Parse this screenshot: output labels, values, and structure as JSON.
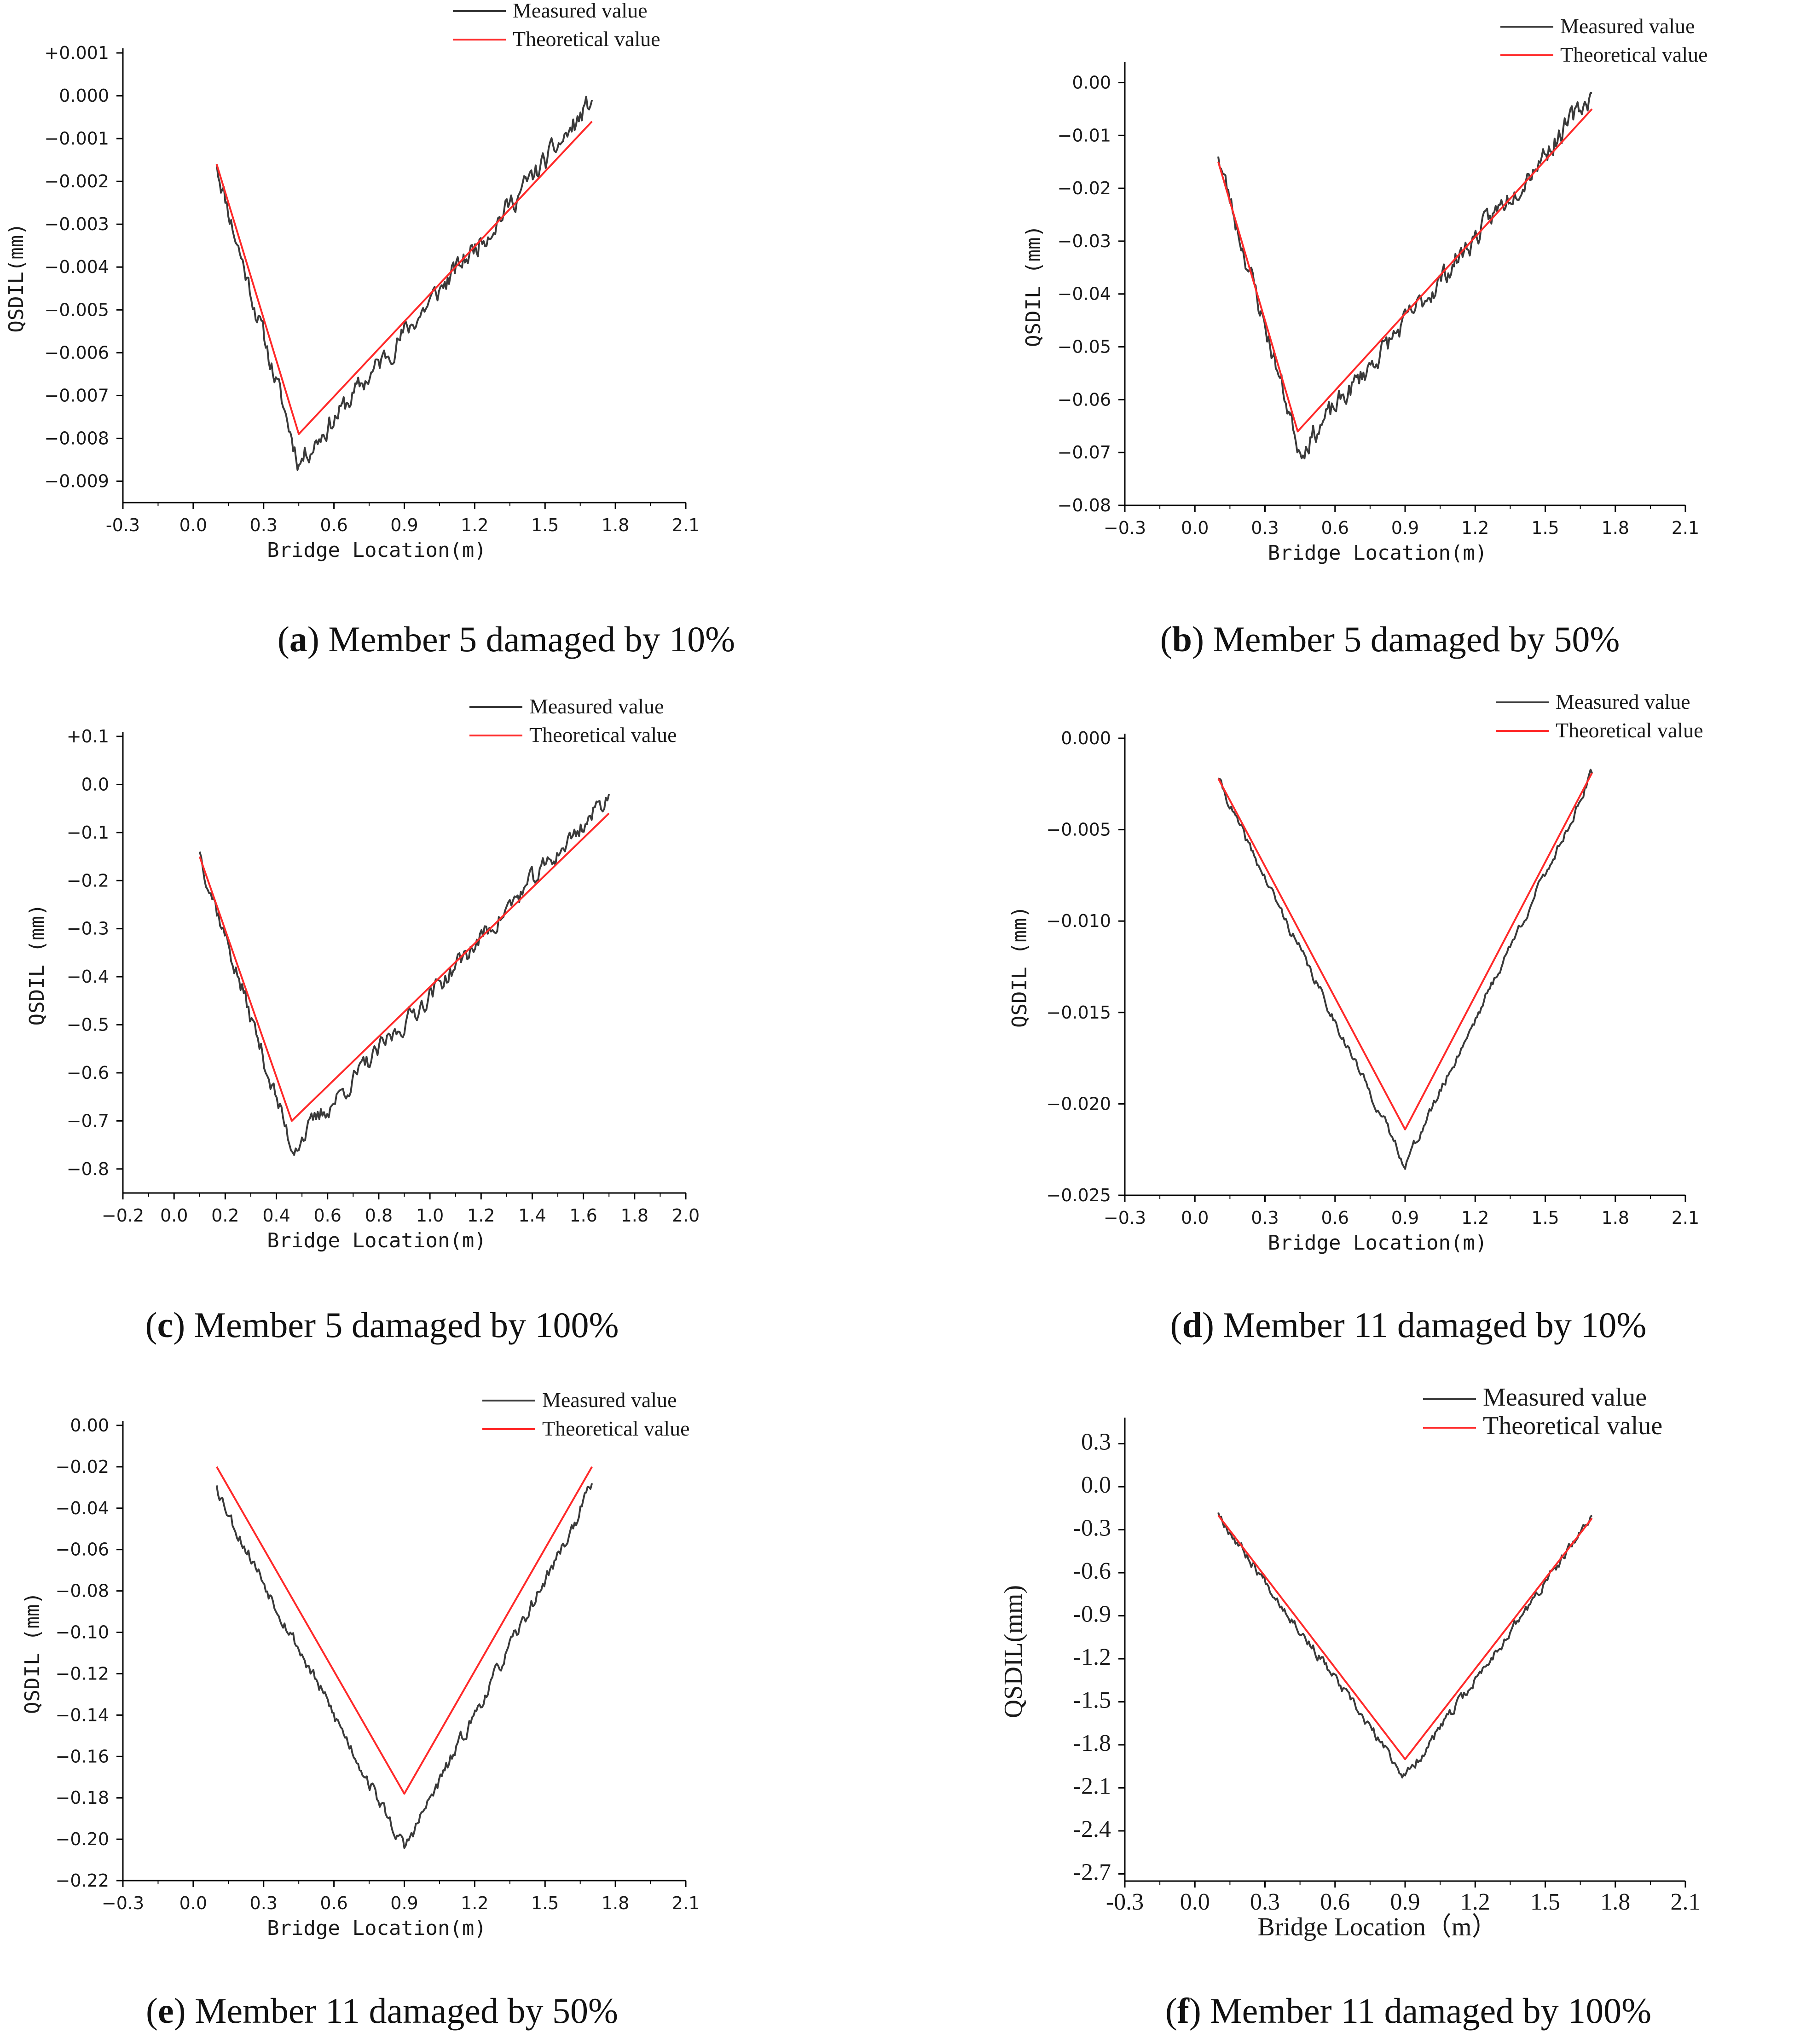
{
  "colors": {
    "measured": "#3a3a3a",
    "theoretical": "#ff2a2a",
    "axis": "#000000"
  },
  "chart_data": [
    {
      "type": "line",
      "caption": {
        "letter": "a",
        "text": "Member 5 damaged by 10%"
      },
      "xlabel": "Bridge Location(m)",
      "ylabel": "QSDIL(mm)",
      "xlim": [
        -0.3,
        2.1
      ],
      "ylim": [
        -0.0095,
        0.001
      ],
      "xticks": [
        -0.3,
        0.0,
        0.3,
        0.6,
        0.9,
        1.2,
        1.5,
        1.8,
        2.1
      ],
      "xtick_labels": [
        "-0.3",
        "0.0",
        "0.3",
        "0.6",
        "0.9",
        "1.2",
        "1.5",
        "1.8",
        "2.1"
      ],
      "yticks": [
        0.001,
        0.0,
        -0.001,
        -0.002,
        -0.003,
        -0.004,
        -0.005,
        -0.006,
        -0.007,
        -0.008,
        -0.009
      ],
      "ytick_labels": [
        "+0.001",
        "0.000",
        "−0.001",
        "−0.002",
        "−0.003",
        "−0.004",
        "−0.005",
        "−0.006",
        "−0.007",
        "−0.008",
        "−0.009"
      ],
      "legend": [
        "Measured value",
        "Theoretical value"
      ],
      "series": [
        {
          "name": "Measured value",
          "x": [
            0.1,
            0.45,
            1.7
          ],
          "y": [
            -0.0016,
            -0.0084,
            -0.0001
          ],
          "noise": 0.00022,
          "bias": -0.0003,
          "seed": 11
        },
        {
          "name": "Theoretical value",
          "x": [
            0.1,
            0.45,
            1.7
          ],
          "y": [
            -0.0016,
            -0.0079,
            -0.0006
          ]
        }
      ]
    },
    {
      "type": "line",
      "caption": {
        "letter": "b",
        "text": "Member 5 damaged by 50%"
      },
      "xlabel": "Bridge Location(m)",
      "ylabel": "QSDIL (mm)",
      "xlim": [
        -0.3,
        2.1
      ],
      "ylim": [
        -0.08,
        0.003
      ],
      "xticks": [
        -0.3,
        0.0,
        0.3,
        0.6,
        0.9,
        1.2,
        1.5,
        1.8,
        2.1
      ],
      "xtick_labels": [
        "−0.3",
        "0.0",
        "0.3",
        "0.6",
        "0.9",
        "1.2",
        "1.5",
        "1.8",
        "2.1"
      ],
      "yticks": [
        0.0,
        -0.01,
        -0.02,
        -0.03,
        -0.04,
        -0.05,
        -0.06,
        -0.07,
        -0.08
      ],
      "ytick_labels": [
        "0.00",
        "−0.01",
        "−0.02",
        "−0.03",
        "−0.04",
        "−0.05",
        "−0.06",
        "−0.07",
        "−0.08"
      ],
      "legend": [
        "Measured value",
        "Theoretical value"
      ],
      "series": [
        {
          "name": "Measured value",
          "x": [
            0.1,
            0.45,
            1.7
          ],
          "y": [
            -0.014,
            -0.069,
            -0.002
          ],
          "noise": 0.0018,
          "bias": -0.0012,
          "seed": 23
        },
        {
          "name": "Theoretical value",
          "x": [
            0.1,
            0.44,
            1.7
          ],
          "y": [
            -0.015,
            -0.066,
            -0.005
          ]
        }
      ]
    },
    {
      "type": "line",
      "caption": {
        "letter": "c",
        "text": "Member 5 damaged by 100%"
      },
      "xlabel": "Bridge Location(m)",
      "ylabel": "QSDIL (mm)",
      "xlim": [
        -0.2,
        2.0
      ],
      "ylim": [
        -0.85,
        0.1
      ],
      "xticks": [
        -0.2,
        0.0,
        0.2,
        0.4,
        0.6,
        0.8,
        1.0,
        1.2,
        1.4,
        1.6,
        1.8,
        2.0
      ],
      "xtick_labels": [
        "−0.2",
        "0.0",
        "0.2",
        "0.4",
        "0.6",
        "0.8",
        "1.0",
        "1.2",
        "1.4",
        "1.6",
        "1.8",
        "2.0"
      ],
      "yticks": [
        0.1,
        0.0,
        -0.1,
        -0.2,
        -0.3,
        -0.4,
        -0.5,
        -0.6,
        -0.7,
        -0.8
      ],
      "ytick_labels": [
        "+0.1",
        "0.0",
        "−0.1",
        "−0.2",
        "−0.3",
        "−0.4",
        "−0.5",
        "−0.6",
        "−0.7",
        "−0.8"
      ],
      "legend": [
        "Measured value",
        "Theoretical value"
      ],
      "series": [
        {
          "name": "Measured value",
          "x": [
            0.1,
            0.46,
            1.7
          ],
          "y": [
            -0.14,
            -0.75,
            -0.02
          ],
          "noise": 0.018,
          "bias": -0.012,
          "seed": 37
        },
        {
          "name": "Theoretical value",
          "x": [
            0.1,
            0.46,
            1.7
          ],
          "y": [
            -0.15,
            -0.7,
            -0.06
          ]
        }
      ]
    },
    {
      "type": "line",
      "caption": {
        "letter": "d",
        "text": "Member 11 damaged by 10%"
      },
      "xlabel": "Bridge Location(m)",
      "ylabel": "QSDIL (mm)",
      "xlim": [
        -0.3,
        2.1
      ],
      "ylim": [
        -0.025,
        0.0
      ],
      "xticks": [
        -0.3,
        0.0,
        0.3,
        0.6,
        0.9,
        1.2,
        1.5,
        1.8,
        2.1
      ],
      "xtick_labels": [
        "−0.3",
        "0.0",
        "0.3",
        "0.6",
        "0.9",
        "1.2",
        "1.5",
        "1.8",
        "2.1"
      ],
      "yticks": [
        0.0,
        -0.005,
        -0.01,
        -0.015,
        -0.02,
        -0.025
      ],
      "ytick_labels": [
        "0.000",
        "−0.005",
        "−0.010",
        "−0.015",
        "−0.020",
        "−0.025"
      ],
      "legend": [
        "Measured value",
        "Theoretical value"
      ],
      "series": [
        {
          "name": "Measured value",
          "x": [
            0.1,
            0.9,
            1.7
          ],
          "y": [
            -0.0022,
            -0.023,
            -0.0019
          ],
          "noise": 0.00022,
          "bias": -0.0006,
          "seed": 41
        },
        {
          "name": "Theoretical value",
          "x": [
            0.1,
            0.9,
            1.7
          ],
          "y": [
            -0.0022,
            -0.0214,
            -0.0019
          ]
        }
      ]
    },
    {
      "type": "line",
      "caption": {
        "letter": "e",
        "text": "Member 11 damaged by 50%"
      },
      "xlabel": "Bridge Location(m)",
      "ylabel": "QSDIL (mm)",
      "xlim": [
        -0.3,
        2.1
      ],
      "ylim": [
        -0.22,
        0.0
      ],
      "xticks": [
        -0.3,
        0.0,
        0.3,
        0.6,
        0.9,
        1.2,
        1.5,
        1.8,
        2.1
      ],
      "xtick_labels": [
        "−0.3",
        "0.0",
        "0.3",
        "0.6",
        "0.9",
        "1.2",
        "1.5",
        "1.8",
        "2.1"
      ],
      "yticks": [
        0.0,
        -0.02,
        -0.04,
        -0.06,
        -0.08,
        -0.1,
        -0.12,
        -0.14,
        -0.16,
        -0.18,
        -0.2,
        -0.22
      ],
      "ytick_labels": [
        "0.00",
        "−0.02",
        "−0.04",
        "−0.06",
        "−0.08",
        "−0.10",
        "−0.12",
        "−0.14",
        "−0.16",
        "−0.18",
        "−0.20",
        "−0.22"
      ],
      "legend": [
        "Measured value",
        "Theoretical value"
      ],
      "series": [
        {
          "name": "Measured value",
          "x": [
            0.1,
            0.9,
            1.7
          ],
          "y": [
            -0.029,
            -0.2,
            -0.028
          ],
          "noise": 0.0028,
          "bias": -0.009,
          "seed": 53
        },
        {
          "name": "Theoretical value",
          "x": [
            0.1,
            0.9,
            1.7
          ],
          "y": [
            -0.02,
            -0.178,
            -0.02
          ]
        }
      ]
    },
    {
      "type": "line",
      "caption": {
        "letter": "f",
        "text": "Member 11 damaged by 100%"
      },
      "xlabel": "Bridge Location（m）",
      "ylabel": "QSDIL(mm)",
      "xlim": [
        -0.3,
        2.1
      ],
      "ylim": [
        -2.75,
        0.45
      ],
      "xticks": [
        -0.3,
        0.0,
        0.3,
        0.6,
        0.9,
        1.2,
        1.5,
        1.8,
        2.1
      ],
      "xtick_labels": [
        "-0.3",
        "0.0",
        "0.3",
        "0.6",
        "0.9",
        "1.2",
        "1.5",
        "1.8",
        "2.1"
      ],
      "yticks": [
        0.3,
        0.0,
        -0.3,
        -0.6,
        -0.9,
        -1.2,
        -1.5,
        -1.8,
        -2.1,
        -2.4,
        -2.7
      ],
      "ytick_labels": [
        "0.3",
        "0.0",
        "-0.3",
        "-0.6",
        "-0.9",
        "-1.2",
        "-1.5",
        "-1.8",
        "-2.1",
        "-2.4",
        "-2.7"
      ],
      "legend": [
        "Measured value",
        "Theoretical value"
      ],
      "series": [
        {
          "name": "Measured value",
          "x": [
            0.1,
            0.9,
            1.7
          ],
          "y": [
            -0.18,
            -2.0,
            -0.2
          ],
          "noise": 0.03,
          "bias": -0.05,
          "seed": 67
        },
        {
          "name": "Theoretical value",
          "x": [
            0.1,
            0.9,
            1.7
          ],
          "y": [
            -0.2,
            -1.9,
            -0.22
          ]
        }
      ]
    }
  ]
}
